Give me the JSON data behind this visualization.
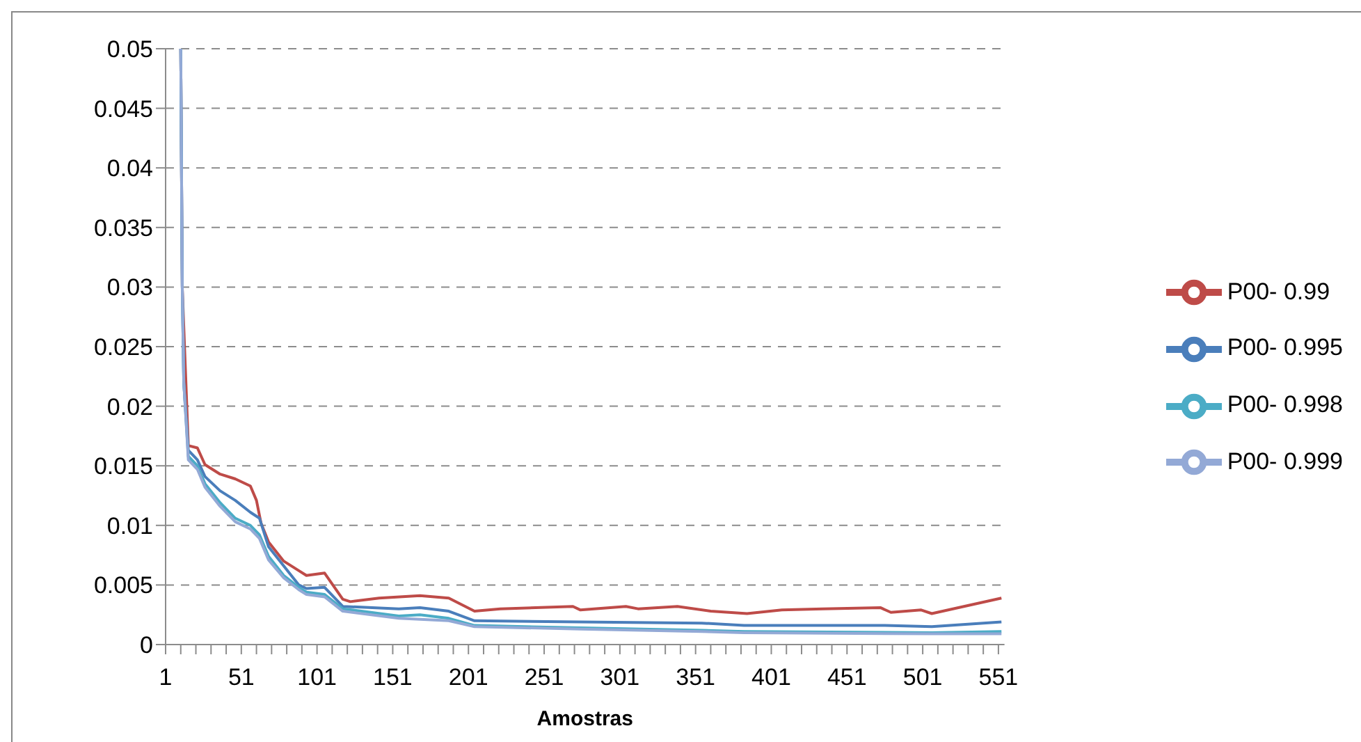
{
  "chart_data": {
    "type": "line",
    "xlabel": "Amostras",
    "xlim": [
      1,
      555
    ],
    "ylim": [
      0,
      0.05
    ],
    "yticks": [
      0,
      0.005,
      0.01,
      0.015,
      0.02,
      0.025,
      0.03,
      0.035,
      0.04,
      0.045,
      0.05
    ],
    "xticks": [
      1,
      {
        "value": 11,
        "label": null
      },
      {
        "value": 21,
        "label": null
      },
      {
        "value": 31,
        "label": null
      },
      {
        "value": 41,
        "label": null
      },
      51,
      {
        "value": 61,
        "label": null
      },
      {
        "value": 71,
        "label": null
      },
      {
        "value": 81,
        "label": null
      },
      {
        "value": 91,
        "label": null
      },
      101,
      {
        "value": 111,
        "label": null
      },
      {
        "value": 121,
        "label": null
      },
      {
        "value": 131,
        "label": null
      },
      {
        "value": 141,
        "label": null
      },
      151,
      {
        "value": 161,
        "label": null
      },
      {
        "value": 171,
        "label": null
      },
      {
        "value": 181,
        "label": null
      },
      {
        "value": 191,
        "label": null
      },
      201,
      {
        "value": 211,
        "label": null
      },
      {
        "value": 221,
        "label": null
      },
      {
        "value": 231,
        "label": null
      },
      {
        "value": 241,
        "label": null
      },
      251,
      {
        "value": 261,
        "label": null
      },
      {
        "value": 271,
        "label": null
      },
      {
        "value": 281,
        "label": null
      },
      {
        "value": 291,
        "label": null
      },
      301,
      {
        "value": 311,
        "label": null
      },
      {
        "value": 321,
        "label": null
      },
      {
        "value": 331,
        "label": null
      },
      {
        "value": 341,
        "label": null
      },
      351,
      {
        "value": 361,
        "label": null
      },
      {
        "value": 371,
        "label": null
      },
      {
        "value": 381,
        "label": null
      },
      {
        "value": 391,
        "label": null
      },
      401,
      {
        "value": 411,
        "label": null
      },
      {
        "value": 421,
        "label": null
      },
      {
        "value": 431,
        "label": null
      },
      {
        "value": 441,
        "label": null
      },
      451,
      {
        "value": 461,
        "label": null
      },
      {
        "value": 471,
        "label": null
      },
      {
        "value": 481,
        "label": null
      },
      {
        "value": 491,
        "label": null
      },
      501,
      {
        "value": 511,
        "label": null
      },
      {
        "value": 521,
        "label": null
      },
      {
        "value": 531,
        "label": null
      },
      {
        "value": 541,
        "label": null
      },
      551
    ],
    "grid": "y",
    "legend": "right",
    "marker": "none",
    "line_style": "solid",
    "series": [
      {
        "name": "P00- 0.99",
        "color": "#be4b48",
        "x": [
          11,
          12,
          16,
          22,
          27,
          37,
          47,
          57,
          61,
          64,
          69,
          79,
          89,
          94,
          106,
          118,
          123,
          142,
          169,
          188,
          205,
          222,
          270,
          275,
          305,
          313,
          339,
          361,
          385,
          408,
          435,
          473,
          480,
          500,
          507,
          553
        ],
        "values": [
          0.05,
          0.03,
          0.0167,
          0.0165,
          0.0151,
          0.0143,
          0.0139,
          0.0133,
          0.0121,
          0.0102,
          0.0086,
          0.007,
          0.0062,
          0.0058,
          0.006,
          0.0038,
          0.0036,
          0.0039,
          0.0041,
          0.0039,
          0.0028,
          0.003,
          0.0032,
          0.0029,
          0.0032,
          0.003,
          0.0032,
          0.0028,
          0.0026,
          0.0029,
          0.003,
          0.0031,
          0.0027,
          0.0029,
          0.0026,
          0.0039
        ]
      },
      {
        "name": "P00- 0.995",
        "color": "#4a7ebb",
        "x": [
          11,
          12,
          13,
          16,
          22,
          27,
          37,
          47,
          57,
          63,
          69,
          79,
          89,
          94,
          106,
          118,
          155,
          169,
          188,
          205,
          275,
          355,
          383,
          476,
          507,
          553
        ],
        "values": [
          0.05,
          0.03,
          0.022,
          0.0163,
          0.0155,
          0.0141,
          0.0129,
          0.0121,
          0.0111,
          0.0106,
          0.0082,
          0.0066,
          0.005,
          0.0047,
          0.0048,
          0.0032,
          0.003,
          0.0031,
          0.0028,
          0.002,
          0.0019,
          0.0018,
          0.0016,
          0.0016,
          0.0015,
          0.0019
        ]
      },
      {
        "name": "P00- 0.998",
        "color": "#4bacc6",
        "x": [
          11,
          12,
          13,
          16,
          22,
          27,
          37,
          47,
          57,
          63,
          69,
          79,
          89,
          94,
          106,
          118,
          155,
          169,
          188,
          205,
          275,
          355,
          383,
          507,
          553
        ],
        "values": [
          0.05,
          0.03,
          0.022,
          0.0158,
          0.015,
          0.0135,
          0.0119,
          0.0106,
          0.01,
          0.0092,
          0.0074,
          0.0058,
          0.0048,
          0.0044,
          0.0042,
          0.003,
          0.0024,
          0.0025,
          0.0022,
          0.0016,
          0.0014,
          0.0012,
          0.0011,
          0.001,
          0.0011
        ]
      },
      {
        "name": "P00- 0.999",
        "color": "#93a9d6",
        "x": [
          11,
          12,
          13,
          16,
          22,
          27,
          37,
          47,
          57,
          63,
          69,
          79,
          89,
          94,
          106,
          118,
          155,
          188,
          205,
          275,
          355,
          383,
          507,
          553
        ],
        "values": [
          0.05,
          0.03,
          0.022,
          0.0155,
          0.0147,
          0.0132,
          0.0116,
          0.0103,
          0.0097,
          0.0089,
          0.0071,
          0.0056,
          0.0046,
          0.0042,
          0.004,
          0.0028,
          0.0022,
          0.002,
          0.0015,
          0.0013,
          0.0011,
          0.001,
          0.0009,
          0.0009
        ]
      }
    ]
  }
}
